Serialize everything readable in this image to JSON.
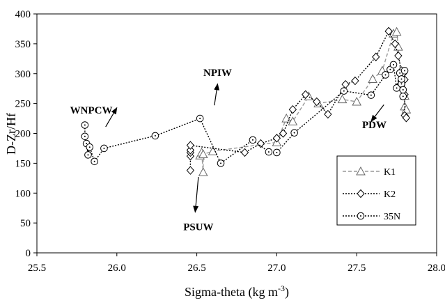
{
  "chart_data": {
    "type": "scatter",
    "xlabel": "Sigma-theta (kg m",
    "xlabel_exponent": "-3",
    "xlabel_close": ")",
    "ylabel": "D-Zr/Hf",
    "xlim": [
      25.5,
      28.0
    ],
    "ylim": [
      0,
      400
    ],
    "xticks": [
      "25.5",
      "26.0",
      "26.5",
      "27.0",
      "27.5",
      "28.0"
    ],
    "yticks": [
      "0",
      "50",
      "100",
      "150",
      "200",
      "250",
      "300",
      "350",
      "400"
    ],
    "grid": false,
    "legend_position": "bottom-right",
    "series": [
      {
        "name": "K1",
        "marker": "triangle",
        "line": "dash",
        "color": "#999999",
        "x": [
          26.52,
          26.53,
          26.54,
          26.54,
          26.6,
          27.0,
          27.06,
          27.1,
          27.2,
          27.26,
          27.41,
          27.5,
          27.6,
          27.66,
          27.73,
          27.75,
          27.76,
          27.78,
          27.8,
          27.8,
          27.81
        ],
        "y": [
          163,
          168,
          135,
          165,
          170,
          185,
          225,
          220,
          262,
          250,
          257,
          253,
          291,
          305,
          367,
          370,
          345,
          280,
          263,
          245,
          240
        ]
      },
      {
        "name": "K2",
        "marker": "diamond",
        "line": "dot",
        "color": "#000000",
        "x": [
          26.46,
          26.46,
          26.46,
          26.46,
          26.46,
          26.8,
          26.9,
          27.0,
          27.04,
          27.1,
          27.18,
          27.25,
          27.32,
          27.43,
          27.49,
          27.62,
          27.7,
          27.74,
          27.76,
          27.78,
          27.79,
          27.8,
          27.8,
          27.8,
          27.81
        ],
        "y": [
          138,
          162,
          168,
          172,
          180,
          168,
          183,
          192,
          200,
          240,
          265,
          253,
          232,
          282,
          288,
          328,
          371,
          350,
          330,
          305,
          300,
          290,
          265,
          230,
          226
        ]
      },
      {
        "name": "35N",
        "marker": "circle",
        "line": "dot",
        "color": "#000000",
        "x": [
          25.8,
          25.8,
          25.81,
          25.82,
          25.83,
          25.86,
          25.92,
          26.24,
          26.52,
          26.65,
          26.85,
          26.95,
          27.0,
          27.11,
          27.42,
          27.59,
          27.68,
          27.71,
          27.73,
          27.75,
          27.77,
          27.78,
          27.78,
          27.79,
          27.79,
          27.8
        ],
        "y": [
          214,
          195,
          183,
          164,
          177,
          153,
          175,
          196,
          225,
          150,
          189,
          169,
          168,
          201,
          271,
          264,
          298,
          307,
          315,
          276,
          301,
          283,
          291,
          273,
          262,
          305
        ]
      }
    ],
    "annotations": [
      {
        "text": "WNPCW",
        "x": 25.84,
        "y": 233,
        "arrow_from": [
          25.93,
          211
        ],
        "arrow_to": [
          26.0,
          243
        ]
      },
      {
        "text": "NPIW",
        "x": 26.63,
        "y": 296,
        "arrow_from": [
          26.61,
          247
        ],
        "arrow_to": [
          26.63,
          283
        ]
      },
      {
        "text": "PSUW",
        "x": 26.51,
        "y": 38,
        "arrow_from": [
          26.51,
          127
        ],
        "arrow_to": [
          26.49,
          68
        ]
      },
      {
        "text": "PDW",
        "x": 27.61,
        "y": 209,
        "arrow_from": [
          27.67,
          248
        ],
        "arrow_to": [
          27.59,
          220
        ]
      }
    ]
  }
}
